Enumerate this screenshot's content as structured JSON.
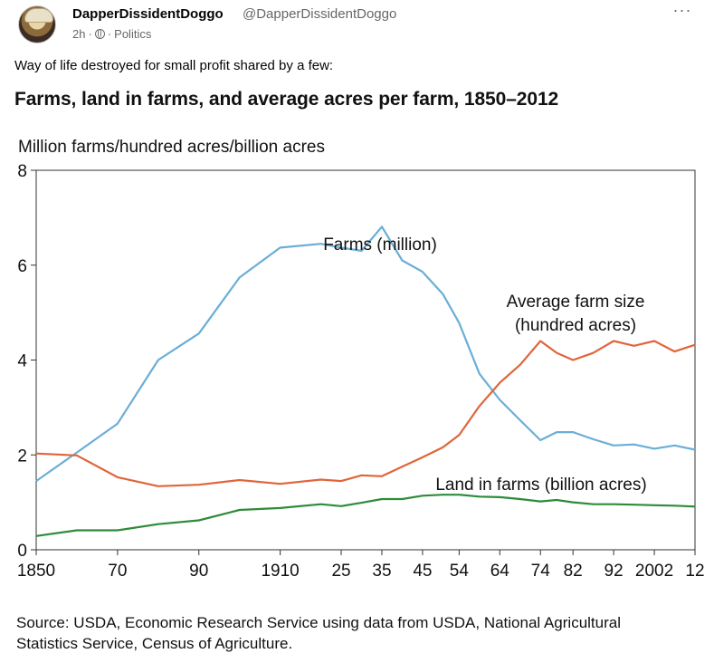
{
  "post": {
    "author_name": "DapperDissidentDoggo",
    "author_handle": "@DapperDissidentDoggo",
    "time": "2h",
    "category": "Politics",
    "text": "Way of life destroyed for small profit shared by a few:",
    "more_icon": "more-horizontal-icon",
    "privacy_icon": "globe-icon"
  },
  "chart_data": {
    "type": "line",
    "title": "Farms, land in farms, and average acres per farm, 1850–2012",
    "ylabel": "Million farms/hundred acres/billion acres",
    "xlabel": "",
    "ylim": [
      0,
      8
    ],
    "yticks": [
      0,
      2,
      4,
      6,
      8
    ],
    "xlim": [
      1850,
      2012
    ],
    "xticks": [
      {
        "value": 1850,
        "label": "1850"
      },
      {
        "value": 1870,
        "label": "70"
      },
      {
        "value": 1890,
        "label": "90"
      },
      {
        "value": 1910,
        "label": "1910"
      },
      {
        "value": 1925,
        "label": "25"
      },
      {
        "value": 1935,
        "label": "35"
      },
      {
        "value": 1945,
        "label": "45"
      },
      {
        "value": 1954,
        "label": "54"
      },
      {
        "value": 1964,
        "label": "64"
      },
      {
        "value": 1974,
        "label": "74"
      },
      {
        "value": 1982,
        "label": "82"
      },
      {
        "value": 1992,
        "label": "92"
      },
      {
        "value": 2002,
        "label": "2002"
      },
      {
        "value": 2012,
        "label": "12"
      }
    ],
    "grid": false,
    "series": [
      {
        "name": "Farms (million)",
        "label_lines": [
          "Farms (million)"
        ],
        "color": "#6aaed6",
        "x": [
          1850,
          1860,
          1870,
          1880,
          1890,
          1900,
          1910,
          1920,
          1925,
          1930,
          1935,
          1940,
          1945,
          1950,
          1954,
          1959,
          1964,
          1969,
          1974,
          1978,
          1982,
          1987,
          1992,
          1997,
          2002,
          2007,
          2012
        ],
        "values": [
          1.45,
          2.05,
          2.66,
          4.0,
          4.56,
          5.74,
          6.37,
          6.45,
          6.37,
          6.3,
          6.81,
          6.1,
          5.86,
          5.39,
          4.78,
          3.71,
          3.16,
          2.73,
          2.31,
          2.48,
          2.48,
          2.33,
          2.2,
          2.22,
          2.13,
          2.2,
          2.11
        ]
      },
      {
        "name": "Average farm size (hundred acres)",
        "label_lines": [
          "Average farm size",
          "(hundred acres)"
        ],
        "color": "#e0653a",
        "x": [
          1850,
          1860,
          1870,
          1880,
          1890,
          1900,
          1910,
          1920,
          1925,
          1930,
          1935,
          1940,
          1945,
          1950,
          1954,
          1959,
          1964,
          1969,
          1974,
          1978,
          1982,
          1987,
          1992,
          1997,
          2002,
          2007,
          2012
        ],
        "values": [
          2.03,
          1.99,
          1.53,
          1.34,
          1.37,
          1.47,
          1.39,
          1.48,
          1.45,
          1.57,
          1.55,
          1.75,
          1.95,
          2.16,
          2.42,
          3.03,
          3.52,
          3.9,
          4.4,
          4.15,
          4.0,
          4.15,
          4.4,
          4.3,
          4.4,
          4.18,
          4.32
        ]
      },
      {
        "name": "Land in farms (billion acres)",
        "label_lines": [
          "Land in farms (billion acres)"
        ],
        "color": "#2e8b3a",
        "x": [
          1850,
          1860,
          1870,
          1880,
          1890,
          1900,
          1910,
          1920,
          1925,
          1930,
          1935,
          1940,
          1945,
          1950,
          1954,
          1959,
          1964,
          1969,
          1974,
          1978,
          1982,
          1987,
          1992,
          1997,
          2002,
          2007,
          2012
        ],
        "values": [
          0.29,
          0.41,
          0.41,
          0.54,
          0.62,
          0.84,
          0.88,
          0.96,
          0.92,
          0.99,
          1.07,
          1.07,
          1.14,
          1.16,
          1.16,
          1.12,
          1.11,
          1.07,
          1.02,
          1.05,
          1.0,
          0.96,
          0.96,
          0.95,
          0.94,
          0.93,
          0.91
        ]
      }
    ],
    "source": "Source: USDA, Economic Research Service using data from USDA, National Agricultural Statistics Service, Census of Agriculture."
  }
}
